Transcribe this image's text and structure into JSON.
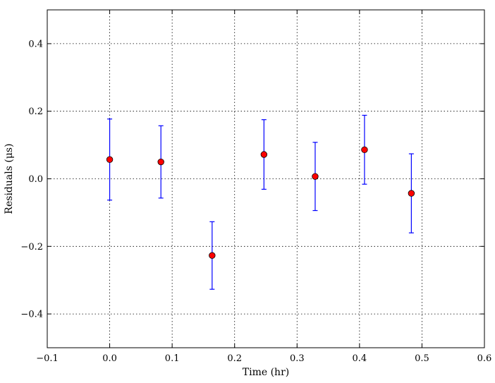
{
  "chart_data": {
    "type": "scatter",
    "xlabel": "Time (hr)",
    "ylabel": "Residuals (μs)",
    "xlim": [
      -0.1,
      0.6
    ],
    "ylim": [
      -0.5,
      0.5
    ],
    "xticks": [
      -0.1,
      0.0,
      0.1,
      0.2,
      0.3,
      0.4,
      0.5,
      0.6
    ],
    "xtick_labels": [
      "−0.1",
      "0.0",
      "0.1",
      "0.2",
      "0.3",
      "0.4",
      "0.5",
      "0.6"
    ],
    "yticks": [
      -0.4,
      -0.2,
      0.0,
      0.2,
      0.4
    ],
    "ytick_labels": [
      "−0.4",
      "−0.2",
      "0.0",
      "0.2",
      "0.4"
    ],
    "grid": true,
    "marker_color": "#ff0000",
    "errorbar_color": "#0000ff",
    "points": [
      {
        "x": 0.0,
        "y": 0.057,
        "yerr": 0.12
      },
      {
        "x": 0.082,
        "y": 0.05,
        "yerr": 0.107
      },
      {
        "x": 0.164,
        "y": -0.227,
        "yerr": 0.1
      },
      {
        "x": 0.247,
        "y": 0.072,
        "yerr": 0.103
      },
      {
        "x": 0.329,
        "y": 0.007,
        "yerr": 0.101
      },
      {
        "x": 0.408,
        "y": 0.086,
        "yerr": 0.102
      },
      {
        "x": 0.483,
        "y": -0.043,
        "yerr": 0.117
      }
    ]
  }
}
